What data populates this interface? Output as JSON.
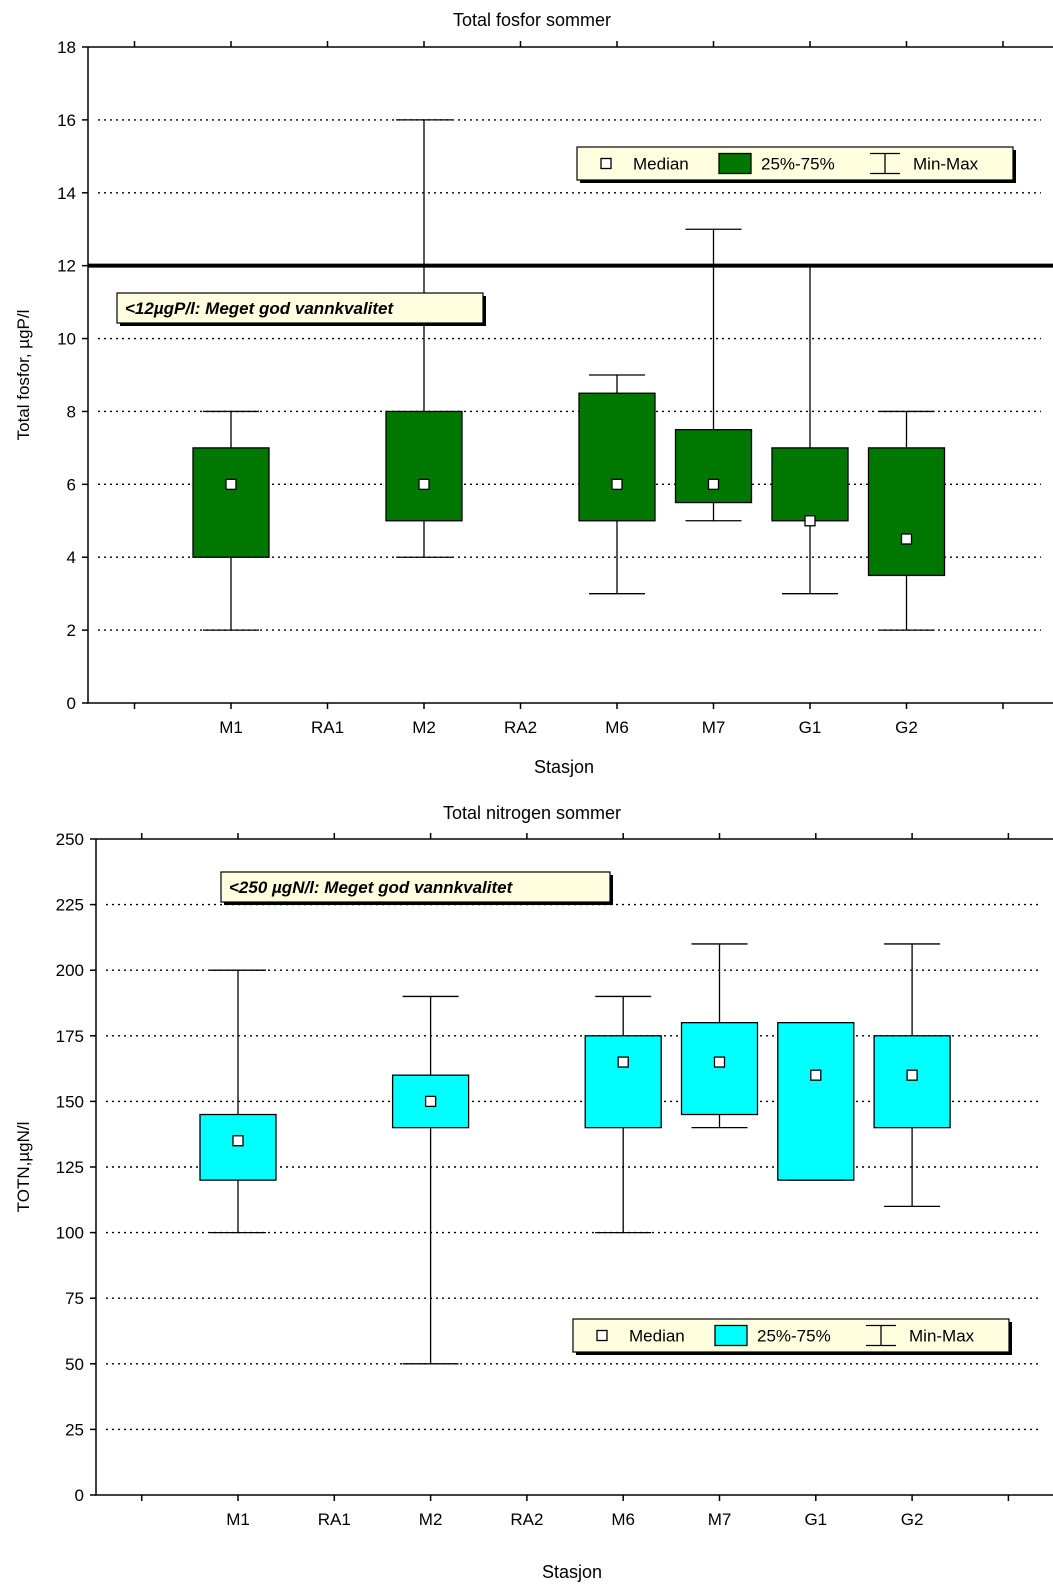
{
  "chart_data": [
    {
      "type": "box",
      "title": "Total fosfor sommer",
      "xlabel": "Stasjon",
      "ylabel": "Total fosfor, µgP/l",
      "categories": [
        "M1",
        "RA1",
        "M2",
        "RA2",
        "M6",
        "M7",
        "G1",
        "G2"
      ],
      "ylim": [
        0,
        18
      ],
      "yticks": [
        0,
        2,
        4,
        6,
        8,
        10,
        12,
        14,
        16,
        18
      ],
      "grid": "dotted horizontal",
      "box_color": "#007700",
      "boxes": [
        {
          "category": "M1",
          "min": 2,
          "q1": 4,
          "median": 6,
          "q3": 7,
          "max": 8
        },
        {
          "category": "M2",
          "min": 4,
          "q1": 5,
          "median": 6,
          "q3": 8,
          "max": 16
        },
        {
          "category": "M6",
          "min": 3,
          "q1": 5,
          "median": 6,
          "q3": 8.5,
          "max": 9
        },
        {
          "category": "M7",
          "min": 5,
          "q1": 5.5,
          "median": 6,
          "q3": 7.5,
          "max": 13
        },
        {
          "category": "G1",
          "min": 3,
          "q1": 5,
          "median": 5,
          "q3": 7,
          "max": 12
        },
        {
          "category": "G2",
          "min": 2,
          "q1": 3.5,
          "median": 4.5,
          "q3": 7,
          "max": 8
        }
      ],
      "reference_line": {
        "value": 12
      },
      "annotation": "<12µgP/l: Meget god vannkvalitet",
      "annotation_placement": "upper-left",
      "legend": {
        "placement": "top-right",
        "median": "Median",
        "box": "25%-75%",
        "whisker": "Min-Max"
      }
    },
    {
      "type": "box",
      "title": "Total nitrogen sommer",
      "xlabel": "Stasjon",
      "ylabel": "TOTN,µgN/l",
      "categories": [
        "M1",
        "RA1",
        "M2",
        "RA2",
        "M6",
        "M7",
        "G1",
        "G2"
      ],
      "ylim": [
        0,
        250
      ],
      "yticks": [
        0,
        25,
        50,
        75,
        100,
        125,
        150,
        175,
        200,
        225,
        250
      ],
      "grid": "dotted horizontal",
      "box_color": "#00ffff",
      "boxes": [
        {
          "category": "M1",
          "min": 100,
          "q1": 120,
          "median": 135,
          "q3": 145,
          "max": 200
        },
        {
          "category": "M2",
          "min": 50,
          "q1": 140,
          "median": 150,
          "q3": 160,
          "max": 190
        },
        {
          "category": "M6",
          "min": 100,
          "q1": 140,
          "median": 165,
          "q3": 175,
          "max": 190
        },
        {
          "category": "M7",
          "min": 140,
          "q1": 145,
          "median": 165,
          "q3": 180,
          "max": 210
        },
        {
          "category": "G1",
          "min": 120,
          "q1": 120,
          "median": 160,
          "q3": 180,
          "max": 180
        },
        {
          "category": "G2",
          "min": 110,
          "q1": 140,
          "median": 160,
          "q3": 175,
          "max": 210
        }
      ],
      "annotation": "<250 µgN/l: Meget god vannkvalitet",
      "annotation_placement": "upper-left",
      "legend": {
        "placement": "lower-right",
        "median": "Median",
        "box": "25%-75%",
        "whisker": "Min-Max"
      }
    }
  ]
}
